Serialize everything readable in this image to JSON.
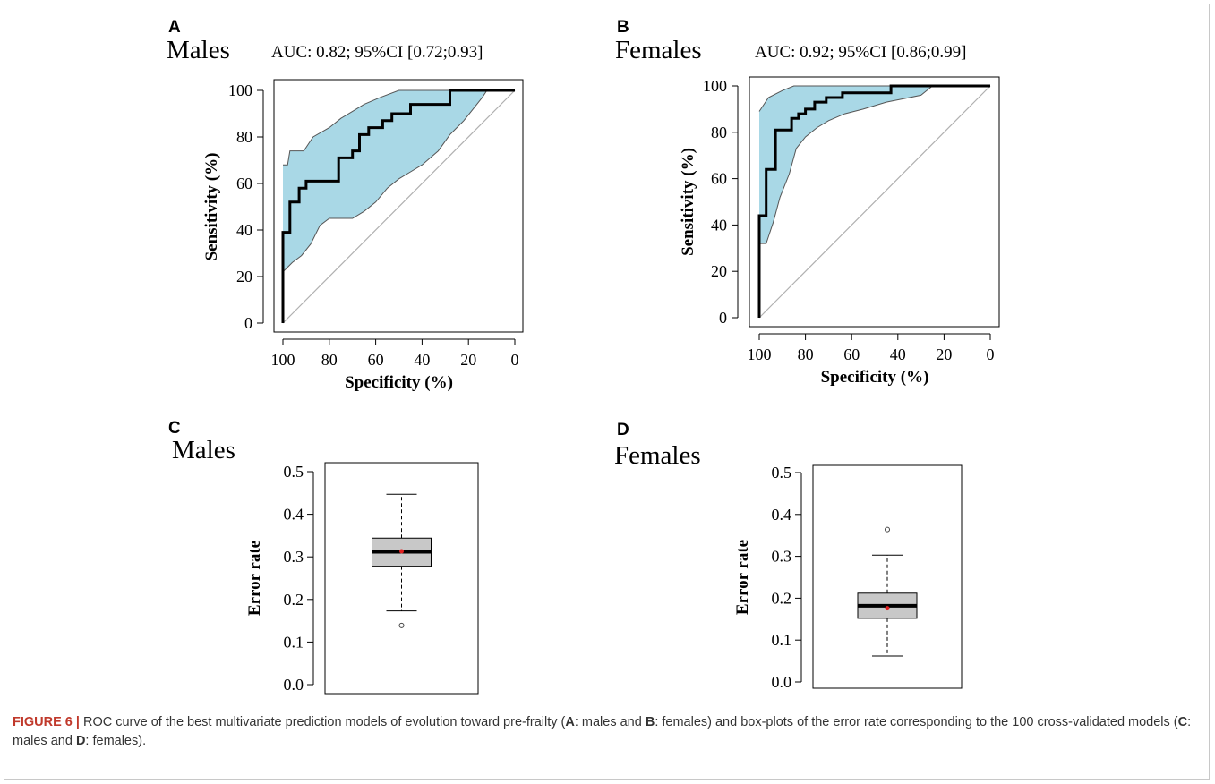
{
  "panels": {
    "A": {
      "letter": "A",
      "heading": "Males",
      "auc": "AUC: 0.82; 95%CI [0.72;0.93]"
    },
    "B": {
      "letter": "B",
      "heading": "Females",
      "auc": "AUC: 0.92; 95%CI [0.86;0.99]"
    },
    "C": {
      "letter": "C",
      "heading": "Males"
    },
    "D": {
      "letter": "D",
      "heading": "Females"
    }
  },
  "colors": {
    "ci_band": "#a9d8e6",
    "ci_edge": "#555555",
    "roc_line": "#000000",
    "diagonal": "#b0b0b0",
    "box_fill": "#c8c8c8",
    "mean_point": "#e02020"
  },
  "chart_data": [
    {
      "type": "line",
      "xlabel": "Specificity (%)",
      "ylabel": "Sensitivity (%)",
      "xlim": [
        100,
        0
      ],
      "ylim": [
        0,
        100
      ],
      "xticks": [
        100,
        80,
        60,
        40,
        20,
        0
      ],
      "yticks": [
        0,
        20,
        40,
        60,
        80,
        100
      ],
      "reference_line": [
        [
          100,
          0
        ],
        [
          0,
          100
        ]
      ],
      "roc": [
        [
          100,
          0
        ],
        [
          100,
          39
        ],
        [
          97,
          39
        ],
        [
          97,
          52
        ],
        [
          93,
          52
        ],
        [
          93,
          58
        ],
        [
          90,
          58
        ],
        [
          90,
          61
        ],
        [
          76,
          61
        ],
        [
          76,
          71
        ],
        [
          70,
          71
        ],
        [
          70,
          74
        ],
        [
          67,
          74
        ],
        [
          67,
          81
        ],
        [
          63,
          81
        ],
        [
          63,
          84
        ],
        [
          57,
          84
        ],
        [
          57,
          87
        ],
        [
          53,
          87
        ],
        [
          53,
          90
        ],
        [
          45,
          90
        ],
        [
          45,
          94
        ],
        [
          28,
          94
        ],
        [
          28,
          100
        ],
        [
          0,
          100
        ]
      ],
      "ci_upper": [
        [
          100,
          68
        ],
        [
          98,
          68
        ],
        [
          97,
          74
        ],
        [
          91,
          74
        ],
        [
          87,
          80
        ],
        [
          80,
          84
        ],
        [
          75,
          88
        ],
        [
          70,
          91
        ],
        [
          65,
          94
        ],
        [
          58,
          97
        ],
        [
          50,
          100
        ],
        [
          0,
          100
        ]
      ],
      "ci_lower": [
        [
          100,
          22
        ],
        [
          98,
          24
        ],
        [
          96,
          26
        ],
        [
          92,
          29
        ],
        [
          88,
          34
        ],
        [
          84,
          42
        ],
        [
          80,
          45
        ],
        [
          70,
          45
        ],
        [
          65,
          48
        ],
        [
          60,
          52
        ],
        [
          55,
          58
        ],
        [
          50,
          62
        ],
        [
          45,
          65
        ],
        [
          40,
          68
        ],
        [
          33,
          74
        ],
        [
          28,
          81
        ],
        [
          22,
          87
        ],
        [
          18,
          92
        ],
        [
          14,
          97
        ],
        [
          12,
          100
        ],
        [
          0,
          100
        ]
      ]
    },
    {
      "type": "line",
      "xlabel": "Specificity (%)",
      "ylabel": "Sensitivity (%)",
      "xlim": [
        100,
        0
      ],
      "ylim": [
        0,
        100
      ],
      "xticks": [
        100,
        80,
        60,
        40,
        20,
        0
      ],
      "yticks": [
        0,
        20,
        40,
        60,
        80,
        100
      ],
      "reference_line": [
        [
          100,
          0
        ],
        [
          0,
          100
        ]
      ],
      "roc": [
        [
          100,
          0
        ],
        [
          100,
          44
        ],
        [
          97,
          44
        ],
        [
          97,
          64
        ],
        [
          93,
          64
        ],
        [
          93,
          81
        ],
        [
          86,
          81
        ],
        [
          86,
          86
        ],
        [
          83,
          86
        ],
        [
          83,
          88
        ],
        [
          80,
          88
        ],
        [
          80,
          90
        ],
        [
          76,
          90
        ],
        [
          76,
          93
        ],
        [
          71,
          93
        ],
        [
          71,
          95
        ],
        [
          64,
          95
        ],
        [
          64,
          97
        ],
        [
          43,
          97
        ],
        [
          43,
          100
        ],
        [
          0,
          100
        ]
      ],
      "ci_upper": [
        [
          100,
          89
        ],
        [
          96,
          95
        ],
        [
          90,
          98
        ],
        [
          85,
          100
        ],
        [
          0,
          100
        ]
      ],
      "ci_lower": [
        [
          100,
          32
        ],
        [
          97,
          32
        ],
        [
          94,
          41
        ],
        [
          91,
          52
        ],
        [
          87,
          62
        ],
        [
          84,
          73
        ],
        [
          80,
          78
        ],
        [
          75,
          82
        ],
        [
          70,
          85
        ],
        [
          63,
          88
        ],
        [
          55,
          90
        ],
        [
          45,
          93
        ],
        [
          35,
          95
        ],
        [
          30,
          96
        ],
        [
          25,
          100
        ],
        [
          0,
          100
        ]
      ]
    },
    {
      "type": "box",
      "ylabel": "Error rate",
      "ylim": [
        0.0,
        0.5
      ],
      "yticks": [
        "0.0",
        "0.1",
        "0.2",
        "0.3",
        "0.4",
        "0.5"
      ],
      "box": {
        "min": 0.173,
        "q1": 0.278,
        "median": 0.312,
        "q3": 0.344,
        "max": 0.447,
        "mean": 0.313,
        "outliers": [
          0.139
        ]
      }
    },
    {
      "type": "box",
      "ylabel": "Error rate",
      "ylim": [
        0.0,
        0.5
      ],
      "yticks": [
        "0.0",
        "0.1",
        "0.2",
        "0.3",
        "0.4",
        "0.5"
      ],
      "box": {
        "min": 0.062,
        "q1": 0.152,
        "median": 0.182,
        "q3": 0.212,
        "max": 0.303,
        "mean": 0.176,
        "outliers": [
          0.364
        ]
      }
    }
  ],
  "caption": {
    "figure_label": "FIGURE 6 |",
    "text_1": " ROC curve of the best multivariate prediction models of evolution toward pre-frailty (",
    "bold_a": "A",
    "text_2": ": males and ",
    "bold_b": "B",
    "text_3": ": females) and box-plots of the error rate corresponding to the 100 cross-validated models (",
    "bold_c": "C",
    "text_4": ": males and ",
    "bold_d": "D",
    "text_5": ": females)."
  }
}
